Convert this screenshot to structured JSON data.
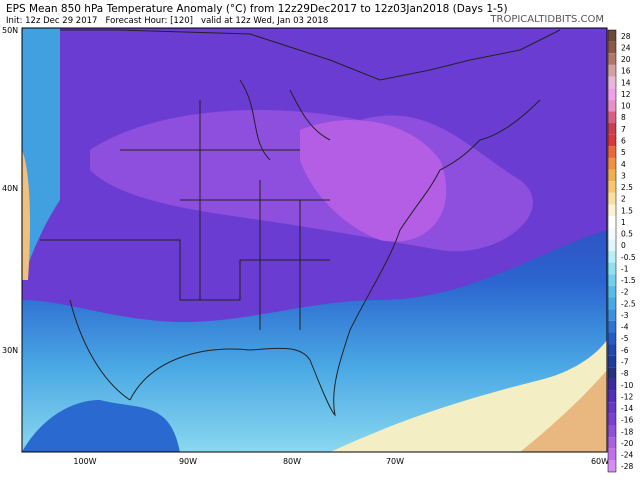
{
  "header": {
    "title": "EPS Mean 850 hPa Temperature Anomaly (°C) from 12z29Dec2017 to 12z03Jan2018 (Days 1-5)",
    "subtitle": "Init: 12z Dec 29 2017   Forecast Hour: [120]   valid at 12z Wed, Jan 03 2018",
    "source": "TROPICALTIDBITS.COM"
  },
  "map": {
    "lat_labels": [
      "50N",
      "40N",
      "30N"
    ],
    "lon_labels": [
      "100W",
      "90W",
      "80W",
      "70W",
      "60W"
    ]
  },
  "colorbar": {
    "labels": [
      "28",
      "24",
      "20",
      "16",
      "14",
      "12",
      "10",
      "8",
      "7",
      "6",
      "5",
      "4",
      "3",
      "2.5",
      "2",
      "1.5",
      "1",
      "0.5",
      "0",
      "-0.5",
      "-1",
      "-1.5",
      "-2",
      "-2.5",
      "-3",
      "-4",
      "-5",
      "-6",
      "-7",
      "-8",
      "-10",
      "-12",
      "-14",
      "-16",
      "-18",
      "-20",
      "-24",
      "-28"
    ],
    "colors": [
      "#6b4a3a",
      "#8a5a48",
      "#b0786a",
      "#d2a0a0",
      "#e6b8d8",
      "#f0a0e8",
      "#e890c8",
      "#d86080",
      "#c84050",
      "#d83838",
      "#e86838",
      "#f09040",
      "#f0b050",
      "#f8c870",
      "#f8e0a0",
      "#fcf4d0",
      "#ffffff",
      "#f4fbff",
      "#e0f6fa",
      "#b8eef6",
      "#90e0f0",
      "#70d0ec",
      "#58bce8",
      "#48a8e4",
      "#3a90dc",
      "#2e74d0",
      "#245cc4",
      "#1e48b0",
      "#1c3aa0",
      "#22307e",
      "#3c2aa0",
      "#5030b8",
      "#6438c8",
      "#7a40d4",
      "#9050dc",
      "#a860e4",
      "#c070e8",
      "#d88cf0"
    ]
  }
}
